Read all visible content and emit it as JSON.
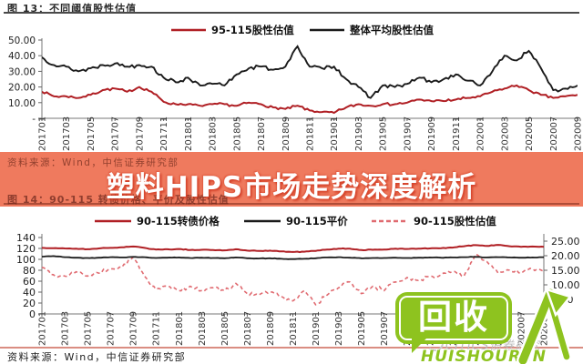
{
  "header13": {
    "title": "图 13：不同阈值股性估值"
  },
  "banner": {
    "source_note": "资料来源：Wind，中信证券研究部",
    "headline": "塑料HIPS市场走势深度解析",
    "fig14_title": "图 14：90-115 转债价格、平价及股性估值"
  },
  "footer": {
    "source_note": "资料来源：Wind，中信证券研究部"
  },
  "logo": {
    "bubble": "回收",
    "name": "HUISHOUREN",
    "watermark": "CITICS债券研究"
  },
  "colors": {
    "accent_red": "#b01f24",
    "series_black": "#1a1a1a",
    "series_pink": "#e06a70",
    "banner_bg": "#ef7a5e",
    "logo_green": "#8ec31f"
  },
  "chart_data": [
    {
      "type": "line",
      "title": "图 13：不同阈值股性估值",
      "x": [
        "201701",
        "201702",
        "201703",
        "201704",
        "201705",
        "201706",
        "201707",
        "201708",
        "201709",
        "201710",
        "201711",
        "201712",
        "201801",
        "201802",
        "201803",
        "201804",
        "201805",
        "201806",
        "201807",
        "201808",
        "201809",
        "201810",
        "201811",
        "201812",
        "201901",
        "201902",
        "201903",
        "201904",
        "201905",
        "201906",
        "201907",
        "201908",
        "201909",
        "201910",
        "201911",
        "201912",
        "202001",
        "202002",
        "202003",
        "202004",
        "202005",
        "202006",
        "202007",
        "202008",
        "202009"
      ],
      "xtick_labels": [
        "201701",
        "201703",
        "201705",
        "201707",
        "201709",
        "201711",
        "201801",
        "201803",
        "201805",
        "201807",
        "201809",
        "201811",
        "201901",
        "201903",
        "201905",
        "201907",
        "201909",
        "201911",
        "202001",
        "202003",
        "202005",
        "202007",
        "202009"
      ],
      "ylim": [
        0,
        50
      ],
      "ytick_labels": [
        "50.00",
        "40.00",
        "30.00",
        "20.00",
        "10.00",
        "-"
      ],
      "ytick_values": [
        50,
        40,
        30,
        20,
        10,
        0
      ],
      "legend_position": "top",
      "grid": false,
      "series": [
        {
          "name": "95-115股性估值",
          "color": "#b01f24",
          "dash": false,
          "values": [
            17,
            14,
            14,
            13,
            15,
            18,
            19,
            17,
            20,
            17,
            10.5,
            9,
            9,
            8,
            9,
            9,
            8,
            10,
            9,
            7,
            6,
            8,
            5,
            4,
            3.5,
            7,
            9,
            8,
            9,
            9,
            10,
            12,
            11,
            11,
            12,
            13,
            14,
            17,
            19,
            21,
            18,
            15,
            13,
            14,
            15
          ]
        },
        {
          "name": "整体平均股性估值",
          "color": "#1a1a1a",
          "dash": false,
          "values": [
            39,
            34,
            33,
            30,
            32,
            34,
            35,
            33,
            34,
            33,
            26,
            23,
            26,
            21,
            22,
            21,
            28,
            32,
            33,
            31,
            33,
            46,
            33,
            32,
            33,
            25,
            20,
            13,
            21,
            20,
            22,
            26,
            23,
            25,
            28,
            24,
            21,
            30,
            40,
            37,
            43,
            32,
            18,
            19,
            21
          ]
        }
      ]
    },
    {
      "type": "line",
      "title": "图 14：90-115 转债价格、平价及股性估值",
      "x": [
        "201701",
        "201702",
        "201703",
        "201704",
        "201705",
        "201706",
        "201707",
        "201708",
        "201709",
        "201710",
        "201711",
        "201712",
        "201801",
        "201802",
        "201803",
        "201804",
        "201805",
        "201806",
        "201807",
        "201808",
        "201809",
        "201810",
        "201811",
        "201812",
        "201901",
        "201902",
        "201903",
        "201904",
        "201905",
        "201906",
        "201907",
        "201908",
        "201909",
        "201910",
        "201911",
        "201912",
        "202001",
        "202002",
        "202003",
        "202004",
        "202005",
        "202006",
        "202007",
        "202008",
        "202009"
      ],
      "xtick_labels": [
        "201701",
        "201703",
        "201705",
        "201707",
        "201709",
        "201711",
        "201801",
        "201803",
        "201805",
        "201807",
        "201809",
        "201811",
        "201901",
        "201903",
        "201905",
        "201907",
        "201909",
        "201911",
        "202001",
        "202003",
        "202005",
        "202007",
        "202009"
      ],
      "ylim_left": [
        0,
        140
      ],
      "ytick_labels_left": [
        "140",
        "120",
        "100",
        "80",
        "60",
        "40",
        "20",
        "0"
      ],
      "ytick_values_left": [
        140,
        120,
        100,
        80,
        60,
        40,
        20,
        0
      ],
      "ylim_right": [
        0,
        25
      ],
      "ytick_labels_right": [
        "25.00",
        "20.00",
        "15.00",
        "10.00",
        "5.00",
        "-"
      ],
      "ytick_values_right": [
        25,
        20,
        15,
        10,
        5,
        0
      ],
      "legend_position": "top",
      "grid": false,
      "series": [
        {
          "name": "90-115转债价格",
          "color": "#b01f24",
          "dash": false,
          "axis": "left",
          "values": [
            121,
            120.5,
            120,
            119.5,
            118.5,
            120,
            121,
            122,
            123.5,
            121,
            118,
            118.5,
            119,
            117,
            117.5,
            117,
            116.5,
            118.5,
            116,
            115.5,
            116,
            114.5,
            113.5,
            114,
            115.5,
            118,
            119.5,
            119.5,
            117,
            117.5,
            118,
            119.5,
            119,
            119.5,
            120,
            120.5,
            121.5,
            124,
            126,
            124.5,
            126.5,
            124,
            123,
            123.5,
            123
          ]
        },
        {
          "name": "90-115平价",
          "color": "#1a1a1a",
          "dash": false,
          "axis": "left",
          "values": [
            105,
            106,
            104,
            103,
            102.5,
            103,
            104,
            103.5,
            104.5,
            104,
            102.5,
            103,
            103.5,
            102.5,
            103,
            102.5,
            102,
            103.5,
            102,
            101.5,
            102,
            101,
            100.5,
            101,
            102,
            103.5,
            104,
            103,
            102,
            102.5,
            102.5,
            103,
            102.5,
            103,
            103.5,
            103,
            103.5,
            104,
            104.5,
            103.5,
            104,
            103.5,
            103,
            103.5,
            104
          ]
        },
        {
          "name": "90-115股性估值",
          "color": "#e06a70",
          "dash": true,
          "axis": "right",
          "values": [
            16,
            13.5,
            13,
            14.5,
            13,
            14,
            15.5,
            16,
            19.5,
            13,
            8.5,
            9.5,
            8,
            9.5,
            8,
            9,
            8,
            10.5,
            7,
            6.5,
            7.5,
            6,
            4.5,
            8,
            3.2,
            6.5,
            9,
            11,
            7,
            9.5,
            8,
            11,
            12.5,
            11.5,
            13,
            13.5,
            14.5,
            13,
            20.5,
            18,
            14,
            15,
            14,
            15.5,
            14.5
          ]
        }
      ]
    }
  ]
}
